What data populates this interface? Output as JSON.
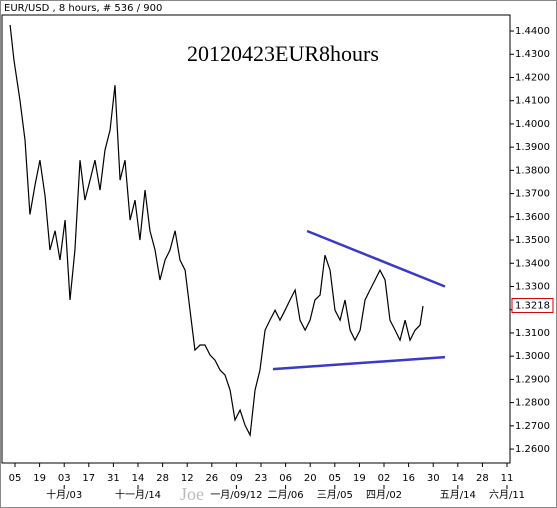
{
  "chart_data": {
    "type": "line",
    "header": "EUR/USD , 8 hours, # 536 / 900",
    "title": "20120423EUR8hours",
    "watermark": "Joe",
    "color": "#000000",
    "x": [
      -2.8,
      -0.6,
      2.8,
      5.7,
      8.5,
      11.4,
      14.2,
      17.1,
      19.9,
      22.8,
      25.6,
      28.5,
      31.3,
      34.1,
      37.0,
      39.8,
      42.7,
      45.5,
      48.4,
      51.2,
      54.1,
      56.9,
      59.8,
      62.6,
      65.5,
      68.3,
      71.1,
      74.0,
      76.8,
      79.7,
      82.5,
      85.4,
      88.2,
      91.1,
      93.9,
      96.8,
      99.6,
      102.4,
      105.3,
      108.1,
      111.0,
      113.8,
      116.7,
      119.5,
      122.4,
      125.2,
      128.1,
      130.9,
      133.8,
      136.6,
      139.4,
      142.3,
      145.1,
      148.0,
      150.8,
      153.7,
      156.5,
      159.4,
      162.2,
      165.1,
      167.9,
      170.7,
      173.6,
      176.4,
      179.3,
      182.1,
      185.0,
      187.8,
      190.7,
      193.5,
      196.4,
      199.2,
      202.0,
      204.9,
      207.7,
      210.6,
      213.4,
      216.3,
      219.1,
      222.0,
      224.8,
      227.7,
      230.5,
      232.2
    ],
    "values": [
      1.4426,
      1.4275,
      1.4103,
      1.393,
      1.361,
      1.3737,
      1.3844,
      1.369,
      1.3457,
      1.354,
      1.3414,
      1.3586,
      1.3242,
      1.3457,
      1.3844,
      1.3672,
      1.3758,
      1.3844,
      1.3715,
      1.3887,
      1.3974,
      1.4167,
      1.3758,
      1.3844,
      1.3586,
      1.3672,
      1.35,
      1.3715,
      1.354,
      1.3457,
      1.3328,
      1.3414,
      1.3457,
      1.354,
      1.3414,
      1.337,
      1.3198,
      1.3026,
      1.3048,
      1.3048,
      1.3005,
      1.2983,
      1.294,
      1.2919,
      1.2854,
      1.2725,
      1.2768,
      1.2703,
      1.266,
      1.2854,
      1.294,
      1.3112,
      1.3155,
      1.3198,
      1.3155,
      1.3198,
      1.3242,
      1.3285,
      1.3155,
      1.3112,
      1.3155,
      1.3242,
      1.3263,
      1.3435,
      1.337,
      1.3198,
      1.3155,
      1.3242,
      1.3112,
      1.3069,
      1.3112,
      1.3242,
      1.3285,
      1.3328,
      1.337,
      1.3328,
      1.3155,
      1.3112,
      1.3069,
      1.3155,
      1.3069,
      1.3112,
      1.3134,
      1.3216
    ],
    "last_price": 1.3218,
    "last_price_color": "#cc0000",
    "trendlines": [
      {
        "color": "#3a3ac8",
        "x": [
          166.2,
          244.7
        ],
        "y": [
          1.3539,
          1.33
        ]
      },
      {
        "color": "#3a3ac8",
        "x": [
          146.8,
          244.7
        ],
        "y": [
          1.2944,
          1.2996
        ]
      }
    ],
    "xlim": [
      -7.4,
      281.7
    ],
    "ylim": [
      1.254,
      1.4469
    ],
    "xticks": [
      {
        "value": 0,
        "label": "05"
      },
      {
        "value": 14,
        "label": "19"
      },
      {
        "value": 28,
        "label": "03"
      },
      {
        "value": 42,
        "label": "17"
      },
      {
        "value": 56,
        "label": "31"
      },
      {
        "value": 70,
        "label": "14"
      },
      {
        "value": 84,
        "label": "28"
      },
      {
        "value": 98,
        "label": "12"
      },
      {
        "value": 112,
        "label": "26"
      },
      {
        "value": 126,
        "label": "09"
      },
      {
        "value": 140,
        "label": "23"
      },
      {
        "value": 154,
        "label": "06"
      },
      {
        "value": 168,
        "label": "20"
      },
      {
        "value": 182,
        "label": "05"
      },
      {
        "value": 196,
        "label": "19"
      },
      {
        "value": 210,
        "label": "02"
      },
      {
        "value": 224,
        "label": "16"
      },
      {
        "value": 238,
        "label": "30"
      },
      {
        "value": 252,
        "label": "14"
      },
      {
        "value": 266,
        "label": "28"
      },
      {
        "value": 280,
        "label": "11"
      }
    ],
    "xticks_months": [
      {
        "value": 28,
        "label": "十月/03"
      },
      {
        "value": 70,
        "label": "十一月/14"
      },
      {
        "value": 126,
        "label": "一月/09/12"
      },
      {
        "value": 154,
        "label": "二月/06"
      },
      {
        "value": 182,
        "label": "三月/05"
      },
      {
        "value": 210,
        "label": "四月/02"
      },
      {
        "value": 252,
        "label": "五月/14"
      },
      {
        "value": 280,
        "label": "六月/11"
      }
    ],
    "yticks": [
      {
        "value": 1.26,
        "label": "1.2600"
      },
      {
        "value": 1.27,
        "label": "1.2700"
      },
      {
        "value": 1.28,
        "label": "1.2800"
      },
      {
        "value": 1.29,
        "label": "1.2900"
      },
      {
        "value": 1.3,
        "label": "1.3000"
      },
      {
        "value": 1.31,
        "label": "1.3100"
      },
      {
        "value": 1.32,
        "label": "1.3200"
      },
      {
        "value": 1.33,
        "label": "1.3300"
      },
      {
        "value": 1.34,
        "label": "1.3400"
      },
      {
        "value": 1.35,
        "label": "1.3500"
      },
      {
        "value": 1.36,
        "label": "1.3600"
      },
      {
        "value": 1.37,
        "label": "1.3700"
      },
      {
        "value": 1.38,
        "label": "1.3800"
      },
      {
        "value": 1.39,
        "label": "1.3900"
      },
      {
        "value": 1.4,
        "label": "1.4000"
      },
      {
        "value": 1.41,
        "label": "1.4100"
      },
      {
        "value": 1.42,
        "label": "1.4200"
      },
      {
        "value": 1.43,
        "label": "1.4300"
      },
      {
        "value": 1.44,
        "label": "1.4400"
      }
    ]
  }
}
